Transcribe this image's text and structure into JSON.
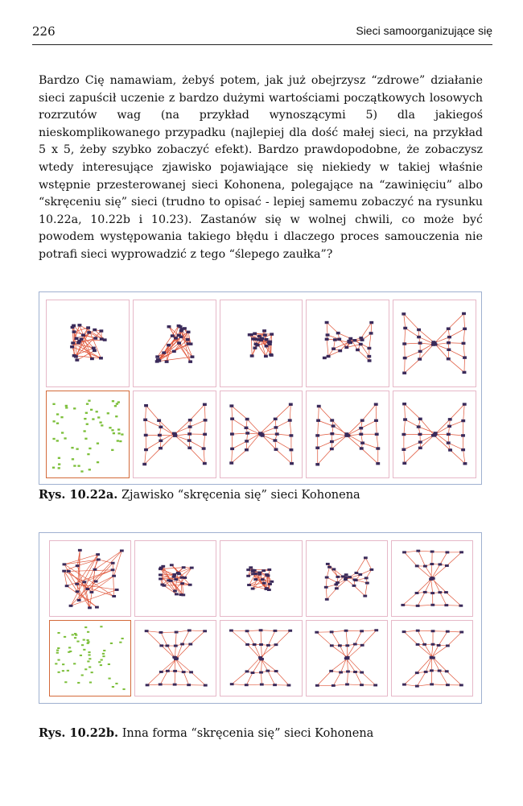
{
  "header": {
    "page_number": "226",
    "running_title": "Sieci samoorganizujące się"
  },
  "body": {
    "paragraph": "Bardzo Cię namawiam, żebyś potem, jak już obejrzysz “zdrowe” działanie sieci zapuścił uczenie z bardzo dużymi wartościami początkowych losowych rozrzutów wag (na przykład wynoszącymi 5) dla jakiegoś nieskomplikowanego przypadku (najlepiej dla dość małej sieci, na przykład 5 x 5, żeby szybko zobaczyć efekt). Bardzo prawdopodobne, że zobaczysz wtedy interesujące zjawisko pojawiające się niekiedy w takiej właśnie wstępnie przesterowanej sieci Kohonena, polegające na “zawinięciu” albo “skręceniu się” sieci (trudno to opisać - lepiej samemu zobaczyć na rysunku 10.22a, 10.22b i 10.23). Zastanów się w wolnej chwili, co może być powodem występowania takiego błędu i dlaczego proces samouczenia nie potrafi sieci wyprowadzić z tego “ślepego zaułka”?"
  },
  "figures": [
    {
      "label": "Rys. 10.22a.",
      "caption": "Zjawisko “skręcenia się” sieci Kohonena",
      "panels": [
        "tangle-dense",
        "tangle-dense",
        "tangle-medium",
        "twist-early",
        "twist-bowtie",
        "initial-points",
        "twist-bowtie",
        "twist-bowtie",
        "twist-bowtie",
        "twist-bowtie"
      ]
    },
    {
      "label": "Rys. 10.22b.",
      "caption": "Inna forma “skręcenia się” sieci Kohonena",
      "panels": [
        "tangle-full",
        "tangle-dense",
        "tangle-medium",
        "twist-early",
        "hourglass",
        "initial-points",
        "hourglass",
        "hourglass",
        "hourglass",
        "hourglass"
      ]
    }
  ],
  "colors": {
    "edge": "#e0563a",
    "node": "#3a2a5a",
    "point": "#7cbf3a",
    "panel_border": "#e6b8c8"
  }
}
